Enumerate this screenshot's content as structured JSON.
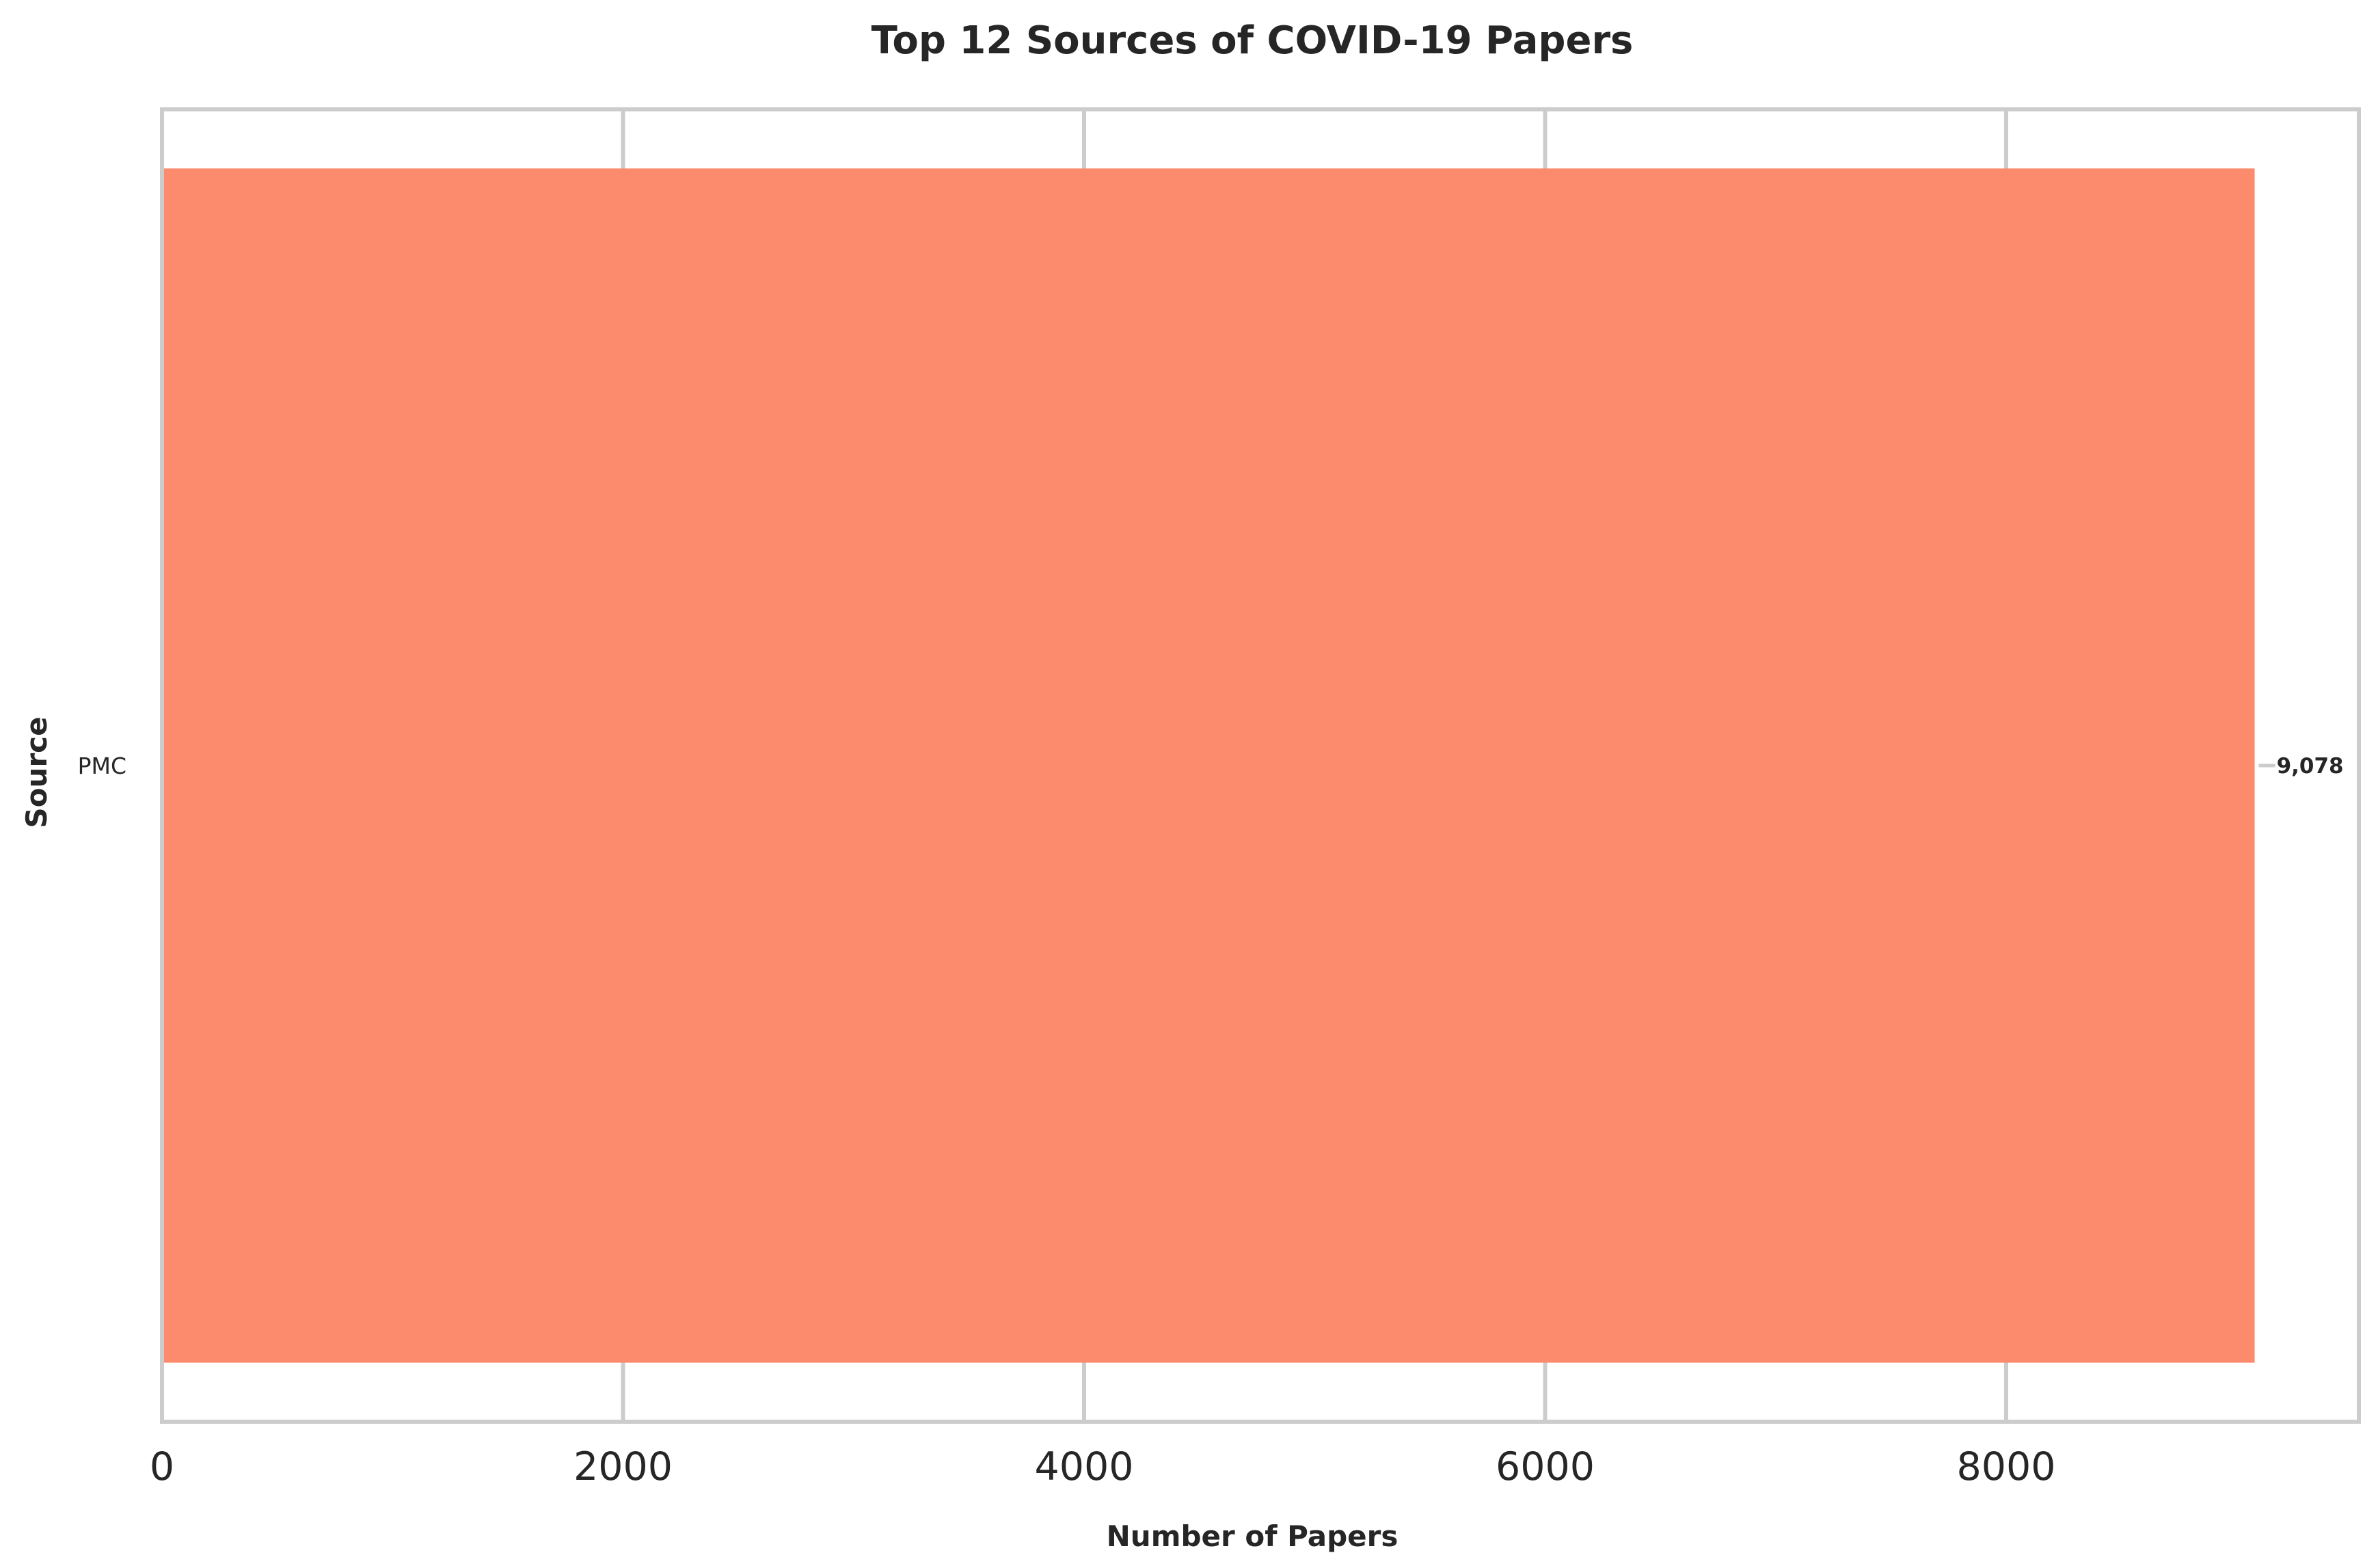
{
  "chart_data": {
    "type": "bar",
    "orientation": "horizontal",
    "title": "Top 12 Sources of COVID-19 Papers",
    "xlabel": "Number of Papers",
    "ylabel": "Source",
    "categories": [
      "PMC"
    ],
    "values": [
      9078
    ],
    "value_labels": [
      "9,078"
    ],
    "xlim": [
      0,
      9530
    ],
    "xticks": [
      0,
      2000,
      4000,
      6000,
      8000
    ],
    "xtick_labels": [
      "0",
      "2000",
      "4000",
      "6000",
      "8000"
    ],
    "grid": true,
    "bar_color": "#fc8a6c",
    "grid_color": "#cccccc",
    "legend": "none"
  }
}
